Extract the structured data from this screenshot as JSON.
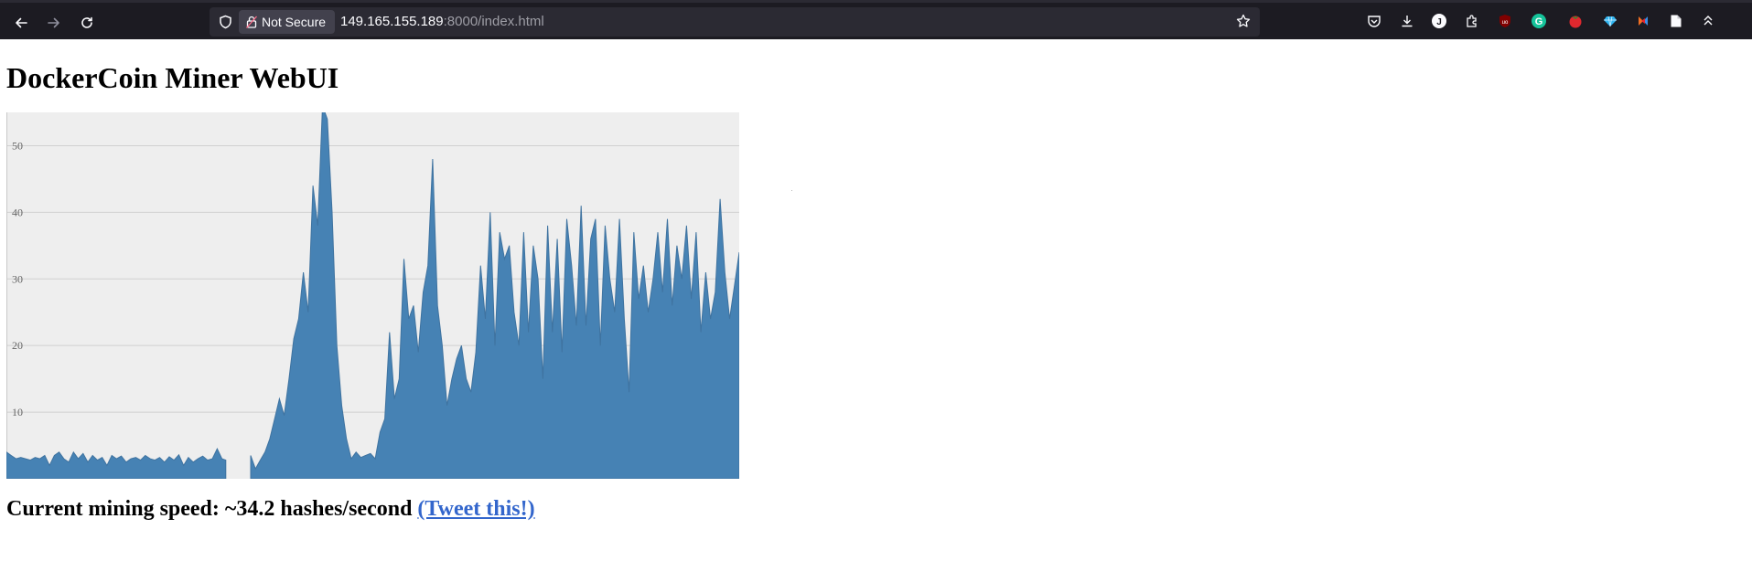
{
  "browser": {
    "security_label": "Not Secure",
    "url_host": "149.165.155.189",
    "url_rest": ":8000/index.html",
    "extensions": [
      {
        "name": "pocket-icon"
      },
      {
        "name": "download-icon"
      },
      {
        "name": "profile-icon",
        "letter": "J"
      },
      {
        "name": "extensions-puzzle-icon"
      },
      {
        "name": "ublock-icon"
      },
      {
        "name": "grammarly-icon",
        "letter": "G"
      },
      {
        "name": "tomato-icon"
      },
      {
        "name": "diamond-icon"
      },
      {
        "name": "colorful-extension-icon"
      },
      {
        "name": "reader-icon"
      },
      {
        "name": "overflow-icon"
      }
    ]
  },
  "page": {
    "title": "DockerCoin Miner WebUI",
    "speed_text": "Current mining speed: ~34.2 hashes/second",
    "tweet_label": "(Tweet this!)"
  },
  "colors": {
    "chart_fill": "#4682b4",
    "chart_bg": "#eeeeee",
    "grid": "#d0d0d0",
    "link": "#3366cc"
  },
  "chart_data": {
    "type": "area",
    "ylim": [
      0,
      55
    ],
    "yticks": [
      10,
      20,
      30,
      40,
      50
    ],
    "series_segments": [
      [
        [
          0,
          4
        ],
        [
          0.5,
          3.5
        ],
        [
          1,
          3
        ],
        [
          1.5,
          3.2
        ],
        [
          2,
          3
        ],
        [
          2.5,
          2.8
        ],
        [
          3,
          3.2
        ],
        [
          3.5,
          3
        ],
        [
          4,
          3.5
        ],
        [
          4.5,
          2
        ],
        [
          5,
          3.5
        ],
        [
          5.5,
          4
        ],
        [
          6,
          3
        ],
        [
          6.5,
          2.5
        ],
        [
          7,
          4
        ],
        [
          7.5,
          3
        ],
        [
          8,
          3.8
        ],
        [
          8.5,
          2.5
        ],
        [
          9,
          3.5
        ],
        [
          9.5,
          2.8
        ],
        [
          10,
          3.2
        ],
        [
          10.5,
          2
        ],
        [
          11,
          3.5
        ],
        [
          11.5,
          3
        ],
        [
          12,
          3.4
        ],
        [
          12.5,
          2.5
        ],
        [
          13,
          3
        ],
        [
          13.5,
          3.2
        ],
        [
          14,
          2.8
        ],
        [
          14.5,
          3.5
        ],
        [
          15,
          3
        ],
        [
          15.5,
          2.8
        ],
        [
          16,
          3.2
        ],
        [
          16.5,
          2.5
        ],
        [
          17,
          3.3
        ],
        [
          17.5,
          2.8
        ],
        [
          18,
          3.6
        ],
        [
          18.5,
          2
        ],
        [
          19,
          3.2
        ],
        [
          19.5,
          2.5
        ],
        [
          20,
          3
        ],
        [
          20.5,
          3.4
        ],
        [
          21,
          2.8
        ],
        [
          21.5,
          3
        ],
        [
          22,
          4.5
        ],
        [
          22.5,
          3
        ],
        [
          22.9,
          2.8
        ]
      ],
      [
        [
          25.5,
          3.5
        ],
        [
          26,
          1.5
        ],
        [
          26.5,
          2.8
        ],
        [
          27,
          4
        ],
        [
          27.5,
          6
        ],
        [
          28,
          9
        ],
        [
          28.5,
          12
        ],
        [
          29,
          9.5
        ],
        [
          29.5,
          15
        ],
        [
          30,
          21
        ],
        [
          30.5,
          24
        ],
        [
          31,
          31
        ],
        [
          31.5,
          25
        ],
        [
          32,
          44
        ],
        [
          32.5,
          38
        ],
        [
          33,
          56
        ],
        [
          33.5,
          54
        ],
        [
          34,
          40
        ],
        [
          34.5,
          20
        ],
        [
          35,
          11
        ],
        [
          35.5,
          6
        ],
        [
          36,
          3
        ],
        [
          36.5,
          4
        ],
        [
          37,
          3.2
        ],
        [
          37.5,
          3.5
        ],
        [
          38,
          3.8
        ],
        [
          38.5,
          3
        ],
        [
          39,
          7
        ],
        [
          39.5,
          9
        ],
        [
          40,
          22
        ],
        [
          40.5,
          12
        ],
        [
          41,
          15
        ],
        [
          41.5,
          33
        ],
        [
          42,
          24
        ],
        [
          42.5,
          26
        ],
        [
          43,
          19
        ],
        [
          43.5,
          28
        ],
        [
          44,
          32
        ],
        [
          44.5,
          48
        ],
        [
          45,
          26
        ],
        [
          45.5,
          20
        ],
        [
          46,
          11
        ],
        [
          46.5,
          15
        ],
        [
          47,
          18
        ],
        [
          47.5,
          20
        ],
        [
          48,
          15
        ],
        [
          48.5,
          13
        ],
        [
          49,
          19
        ],
        [
          49.5,
          32
        ],
        [
          50,
          24
        ],
        [
          50.5,
          40
        ],
        [
          51,
          20
        ],
        [
          51.5,
          37
        ],
        [
          52,
          33
        ],
        [
          52.5,
          35
        ],
        [
          53,
          25
        ],
        [
          53.5,
          20
        ],
        [
          54,
          37
        ],
        [
          54.5,
          22
        ],
        [
          55,
          35
        ],
        [
          55.5,
          30
        ],
        [
          56,
          15
        ],
        [
          56.5,
          38
        ],
        [
          57,
          22
        ],
        [
          57.5,
          36
        ],
        [
          58,
          19
        ],
        [
          58.5,
          39
        ],
        [
          59,
          32
        ],
        [
          59.5,
          23
        ],
        [
          60,
          41
        ],
        [
          60.5,
          23
        ],
        [
          61,
          36
        ],
        [
          61.5,
          39
        ],
        [
          62,
          20
        ],
        [
          62.5,
          38
        ],
        [
          63,
          30
        ],
        [
          63.5,
          25
        ],
        [
          64,
          39
        ],
        [
          64.5,
          24
        ],
        [
          65,
          13
        ],
        [
          65.5,
          37
        ],
        [
          66,
          27
        ],
        [
          66.5,
          32
        ],
        [
          67,
          25
        ],
        [
          67.5,
          30
        ],
        [
          68,
          37
        ],
        [
          68.5,
          28
        ],
        [
          69,
          39
        ],
        [
          69.5,
          26
        ],
        [
          70,
          35
        ],
        [
          70.5,
          30
        ],
        [
          71,
          38
        ],
        [
          71.5,
          27
        ],
        [
          72,
          37
        ],
        [
          72.5,
          22
        ],
        [
          73,
          31
        ],
        [
          73.5,
          24
        ],
        [
          74,
          28
        ],
        [
          74.5,
          42
        ],
        [
          75,
          31
        ],
        [
          75.5,
          24
        ],
        [
          76,
          29
        ],
        [
          76.5,
          34
        ]
      ]
    ],
    "xlim": [
      0,
      76.5
    ]
  }
}
